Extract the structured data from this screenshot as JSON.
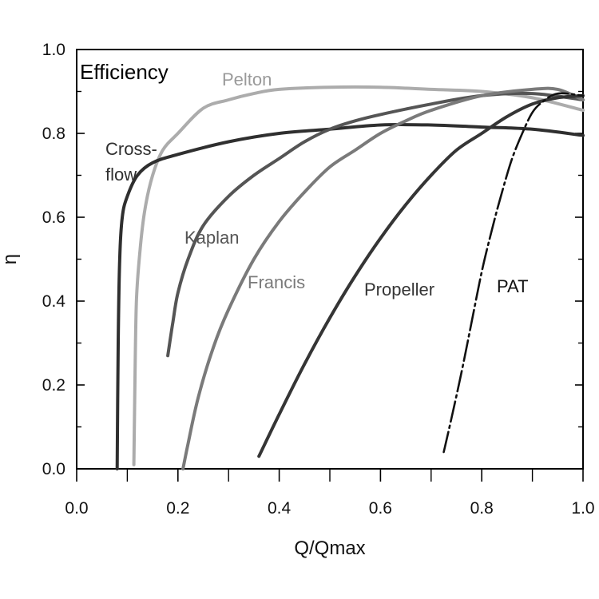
{
  "chart_data": {
    "type": "line",
    "title": "Efficiency",
    "xlabel": "Q/Qmax",
    "ylabel": "η",
    "xlim": [
      0,
      1
    ],
    "ylim": [
      0,
      1
    ],
    "x_ticks": [
      "0.0",
      "0.2",
      "0.4",
      "0.6",
      "0.8",
      "1.0"
    ],
    "y_ticks": [
      "0.0",
      "0.2",
      "0.4",
      "0.6",
      "0.8",
      "1.0"
    ],
    "grid": false,
    "series": [
      {
        "name": "Pelton",
        "label_lines": [
          "Pelton"
        ],
        "color": "#acacac",
        "dashed": false,
        "x": [
          0.113,
          0.115,
          0.118,
          0.125,
          0.135,
          0.15,
          0.17,
          0.2,
          0.25,
          0.3,
          0.35,
          0.4,
          0.5,
          0.6,
          0.7,
          0.8,
          0.9,
          1.0
        ],
        "y": [
          0.01,
          0.2,
          0.4,
          0.52,
          0.62,
          0.7,
          0.76,
          0.8,
          0.86,
          0.88,
          0.895,
          0.905,
          0.91,
          0.91,
          0.905,
          0.9,
          0.885,
          0.855
        ]
      },
      {
        "name": "Cross-flow",
        "label_lines": [
          "Cross-",
          "flow"
        ],
        "color": "#2f2f2f",
        "dashed": false,
        "x": [
          0.08,
          0.082,
          0.085,
          0.09,
          0.1,
          0.12,
          0.15,
          0.2,
          0.3,
          0.4,
          0.5,
          0.6,
          0.7,
          0.8,
          0.9,
          1.0
        ],
        "y": [
          0.0,
          0.3,
          0.5,
          0.6,
          0.65,
          0.7,
          0.73,
          0.75,
          0.78,
          0.8,
          0.81,
          0.82,
          0.82,
          0.815,
          0.81,
          0.795
        ]
      },
      {
        "name": "Kaplan",
        "label_lines": [
          "Kaplan"
        ],
        "color": "#555555",
        "dashed": false,
        "x": [
          0.18,
          0.19,
          0.2,
          0.22,
          0.25,
          0.3,
          0.35,
          0.4,
          0.45,
          0.5,
          0.55,
          0.6,
          0.7,
          0.8,
          0.9,
          1.0
        ],
        "y": [
          0.27,
          0.35,
          0.42,
          0.5,
          0.58,
          0.65,
          0.7,
          0.74,
          0.78,
          0.81,
          0.83,
          0.845,
          0.87,
          0.89,
          0.895,
          0.88
        ]
      },
      {
        "name": "Francis",
        "label_lines": [
          "Francis"
        ],
        "color": "#7a7a7a",
        "dashed": false,
        "x": [
          0.21,
          0.22,
          0.24,
          0.27,
          0.3,
          0.35,
          0.4,
          0.45,
          0.5,
          0.55,
          0.6,
          0.65,
          0.7,
          0.8,
          0.9,
          0.95,
          1.0
        ],
        "y": [
          0.0,
          0.06,
          0.17,
          0.29,
          0.38,
          0.5,
          0.59,
          0.66,
          0.72,
          0.76,
          0.8,
          0.83,
          0.855,
          0.89,
          0.905,
          0.905,
          0.88
        ]
      },
      {
        "name": "Propeller",
        "label_lines": [
          "Propeller"
        ],
        "color": "#353535",
        "dashed": false,
        "x": [
          0.36,
          0.4,
          0.45,
          0.5,
          0.55,
          0.6,
          0.65,
          0.7,
          0.75,
          0.8,
          0.85,
          0.9,
          0.95,
          1.0
        ],
        "y": [
          0.03,
          0.13,
          0.25,
          0.36,
          0.46,
          0.55,
          0.63,
          0.7,
          0.76,
          0.8,
          0.84,
          0.87,
          0.885,
          0.89
        ]
      },
      {
        "name": "PAT",
        "label_lines": [
          "PAT"
        ],
        "color": "#111111",
        "dashed": true,
        "x": [
          0.725,
          0.74,
          0.76,
          0.78,
          0.8,
          0.82,
          0.84,
          0.86,
          0.88,
          0.9,
          0.92,
          0.95,
          1.0
        ],
        "y": [
          0.04,
          0.12,
          0.23,
          0.35,
          0.47,
          0.57,
          0.66,
          0.74,
          0.8,
          0.85,
          0.875,
          0.895,
          0.89
        ]
      }
    ]
  }
}
